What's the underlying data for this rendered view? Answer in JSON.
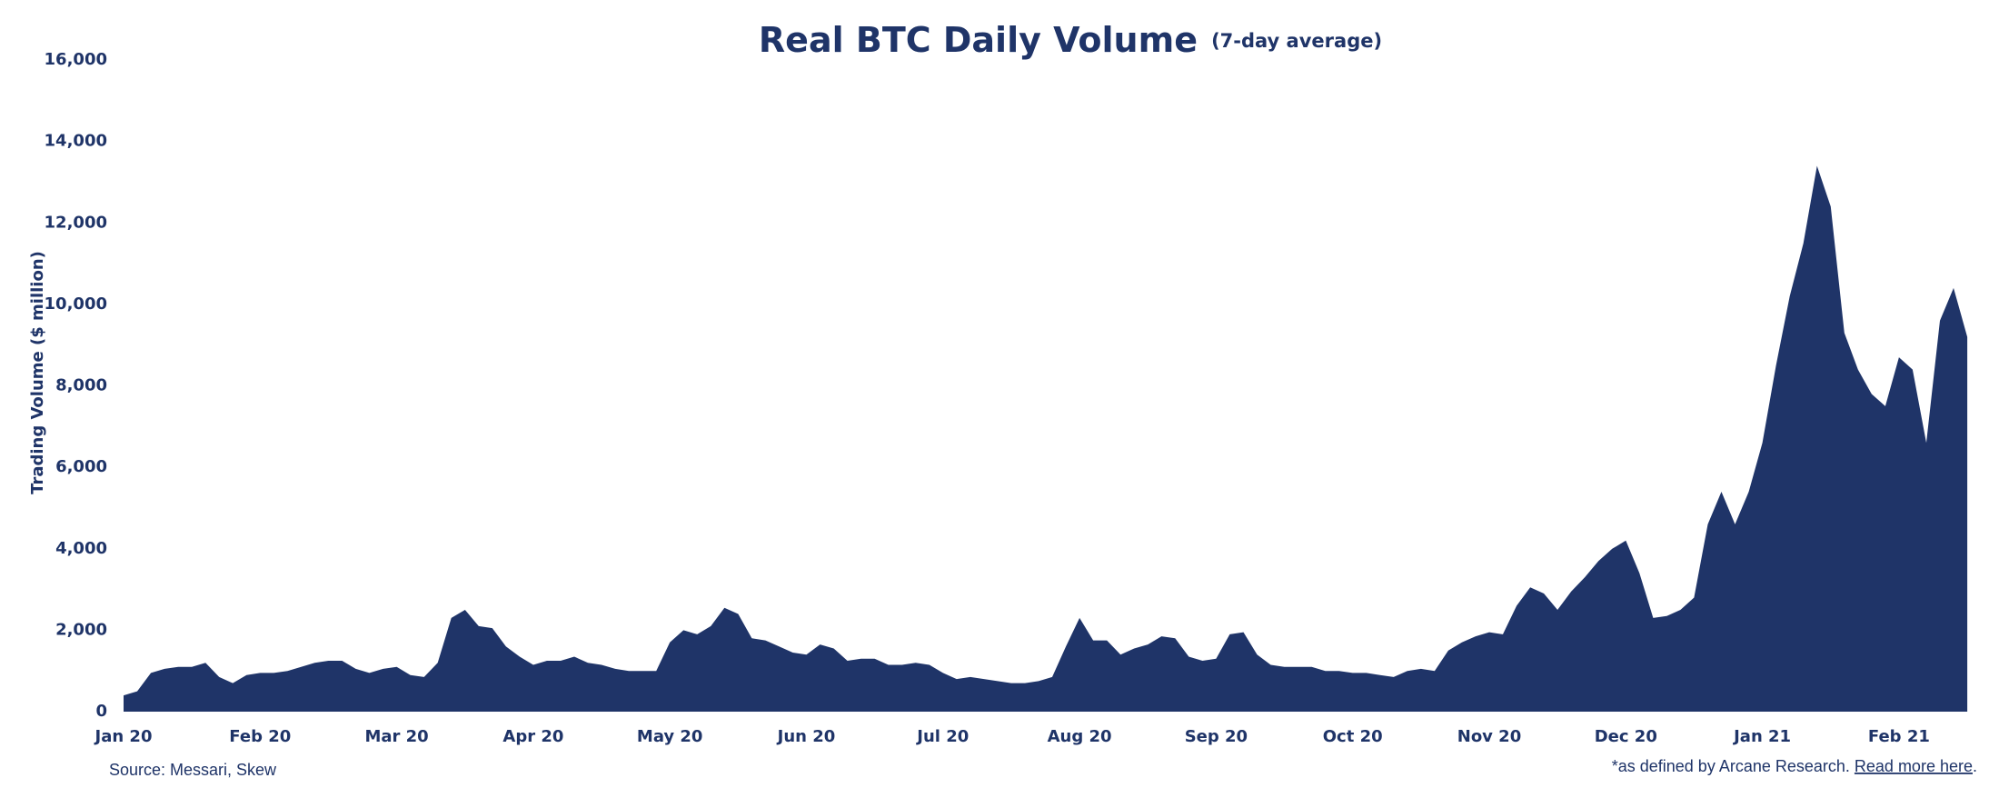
{
  "chart_data": {
    "type": "area",
    "title": "Real BTC Daily Volume",
    "subtitle": "(7-day average)",
    "y_label": "Trading Volume ($ million)",
    "source": "Source: Messari, Skew",
    "footnote": "*as defined by Arcane Research. ",
    "footnote_link": "Read more here",
    "footnote_end": ".",
    "color": "#1f3468",
    "grid": false,
    "ylim": [
      0,
      16000
    ],
    "yticks": [
      0,
      {
        "value": 2000,
        "label": "2,000"
      },
      {
        "value": 4000,
        "label": "4,000"
      },
      {
        "value": 6000,
        "label": "6,000"
      },
      {
        "value": 8000,
        "label": "8,000"
      },
      {
        "value": 10000,
        "label": "10,000"
      },
      {
        "value": 12000,
        "label": "12,000"
      },
      {
        "value": 14000,
        "label": "14,000"
      },
      {
        "value": 16000,
        "label": "16,000"
      }
    ],
    "categories": [
      "Jan 20",
      null,
      null,
      null,
      null,
      null,
      null,
      null,
      null,
      null,
      "Feb 20",
      null,
      null,
      null,
      null,
      null,
      null,
      null,
      null,
      null,
      "Mar 20",
      null,
      null,
      null,
      null,
      null,
      null,
      null,
      null,
      null,
      "Apr 20",
      null,
      null,
      null,
      null,
      null,
      null,
      null,
      null,
      null,
      "May 20",
      null,
      null,
      null,
      null,
      null,
      null,
      null,
      null,
      null,
      "Jun 20",
      null,
      null,
      null,
      null,
      null,
      null,
      null,
      null,
      null,
      "Jul 20",
      null,
      null,
      null,
      null,
      null,
      null,
      null,
      null,
      null,
      "Aug 20",
      null,
      null,
      null,
      null,
      null,
      null,
      null,
      null,
      null,
      "Sep 20",
      null,
      null,
      null,
      null,
      null,
      null,
      null,
      null,
      null,
      "Oct 20",
      null,
      null,
      null,
      null,
      null,
      null,
      null,
      null,
      null,
      "Nov 20",
      null,
      null,
      null,
      null,
      null,
      null,
      null,
      null,
      null,
      "Dec 20",
      null,
      null,
      null,
      null,
      null,
      null,
      null,
      null,
      null,
      "Jan 21",
      null,
      null,
      null,
      null,
      null,
      null,
      null,
      null,
      null,
      "Feb 21",
      null,
      null,
      null,
      null,
      null
    ],
    "values": [
      400,
      500,
      950,
      1050,
      1100,
      1100,
      1200,
      850,
      700,
      900,
      950,
      950,
      1000,
      1100,
      1200,
      1250,
      1250,
      1050,
      950,
      1050,
      1100,
      900,
      850,
      1200,
      2300,
      2500,
      2100,
      2050,
      1600,
      1350,
      1150,
      1250,
      1250,
      1350,
      1200,
      1150,
      1050,
      1000,
      1000,
      1000,
      1700,
      2000,
      1900,
      2100,
      2550,
      2400,
      1800,
      1750,
      1600,
      1450,
      1400,
      1650,
      1550,
      1250,
      1300,
      1300,
      1150,
      1150,
      1200,
      1150,
      950,
      800,
      850,
      800,
      750,
      700,
      700,
      750,
      850,
      1600,
      2300,
      1750,
      1750,
      1400,
      1550,
      1650,
      1850,
      1800,
      1350,
      1250,
      1300,
      1900,
      1950,
      1400,
      1150,
      1100,
      1100,
      1100,
      1000,
      1000,
      950,
      950,
      900,
      850,
      1000,
      1050,
      1000,
      1500,
      1700,
      1850,
      1950,
      1900,
      2600,
      3050,
      2900,
      2500,
      2950,
      3300,
      3700,
      4000,
      4200,
      3400,
      2300,
      2350,
      2500,
      2800,
      4600,
      5400,
      4600,
      5400,
      6600,
      8500,
      10200,
      11500,
      13400,
      12400,
      9300,
      8400,
      7800,
      7500,
      8700,
      8400,
      6600,
      9600,
      10400,
      9200
    ]
  }
}
